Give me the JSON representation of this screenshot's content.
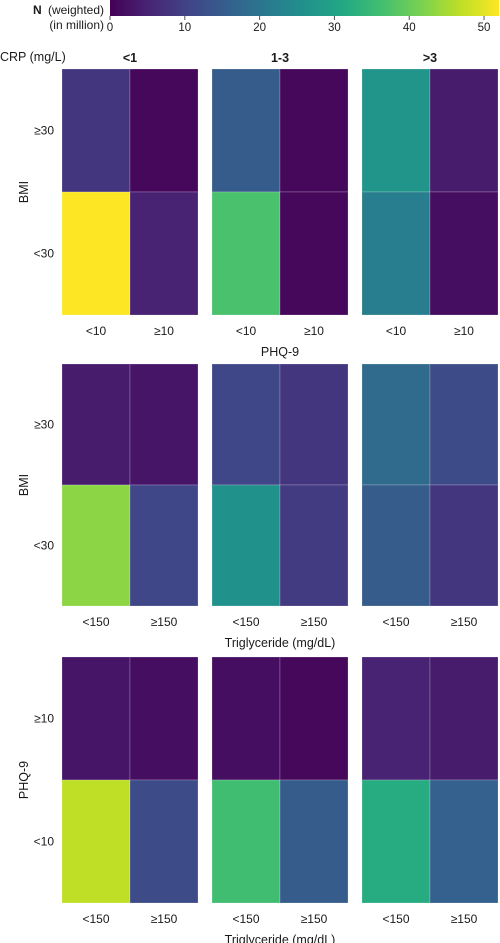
{
  "colorbar": {
    "label_bold": "N",
    "label_rest": "(weighted)",
    "label_line2": "(in million)",
    "ticks": [
      "0",
      "10",
      "20",
      "30",
      "40",
      "50"
    ],
    "tick_values": [
      0,
      10,
      20,
      30,
      40,
      50
    ],
    "range": [
      0,
      52
    ],
    "colormap": "viridis",
    "colors": [
      "#440154",
      "#482475",
      "#414487",
      "#355f8d",
      "#2a788e",
      "#21918c",
      "#22a884",
      "#44bf70",
      "#7ad151",
      "#bddf26",
      "#fde725"
    ]
  },
  "crp_label": "CRP (mg/L)",
  "crp_groups": [
    "<1",
    "1-3",
    ">3"
  ],
  "chart_data": [
    {
      "type": "heatmap",
      "ylabel": "BMI",
      "xlabel": "PHQ-9",
      "x_categories": [
        "<10",
        "≥10"
      ],
      "y_categories": [
        "≥30",
        "<30"
      ],
      "panels": [
        {
          "crp": "<1",
          "values": [
            [
              8,
              1
            ],
            [
              52,
              5
            ]
          ]
        },
        {
          "crp": "1-3",
          "values": [
            [
              15,
              1
            ],
            [
              37,
              1
            ]
          ]
        },
        {
          "crp": ">3",
          "values": [
            [
              27,
              4
            ],
            [
              22,
              2
            ]
          ]
        }
      ]
    },
    {
      "type": "heatmap",
      "ylabel": "BMI",
      "xlabel": "Triglyceride (mg/dL)",
      "x_categories": [
        "<150",
        "≥150"
      ],
      "y_categories": [
        "≥30",
        "<30"
      ],
      "panels": [
        {
          "crp": "<1",
          "values": [
            [
              4,
              3
            ],
            [
              43,
              11
            ]
          ]
        },
        {
          "crp": "1-3",
          "values": [
            [
              11,
              8
            ],
            [
              26,
              9
            ]
          ]
        },
        {
          "crp": ">3",
          "values": [
            [
              18,
              12
            ],
            [
              15,
              8
            ]
          ]
        }
      ]
    },
    {
      "type": "heatmap",
      "ylabel": "PHQ-9",
      "xlabel": "Triglyceride (mg/dL)",
      "x_categories": [
        "<150",
        "≥150"
      ],
      "y_categories": [
        "≥10",
        "<10"
      ],
      "panels": [
        {
          "crp": "<1",
          "values": [
            [
              3,
              2
            ],
            [
              47,
              12
            ]
          ]
        },
        {
          "crp": "1-3",
          "values": [
            [
              2,
              1
            ],
            [
              36,
              15
            ]
          ]
        },
        {
          "crp": ">3",
          "values": [
            [
              5,
              4
            ],
            [
              32,
              16
            ]
          ]
        }
      ]
    }
  ]
}
